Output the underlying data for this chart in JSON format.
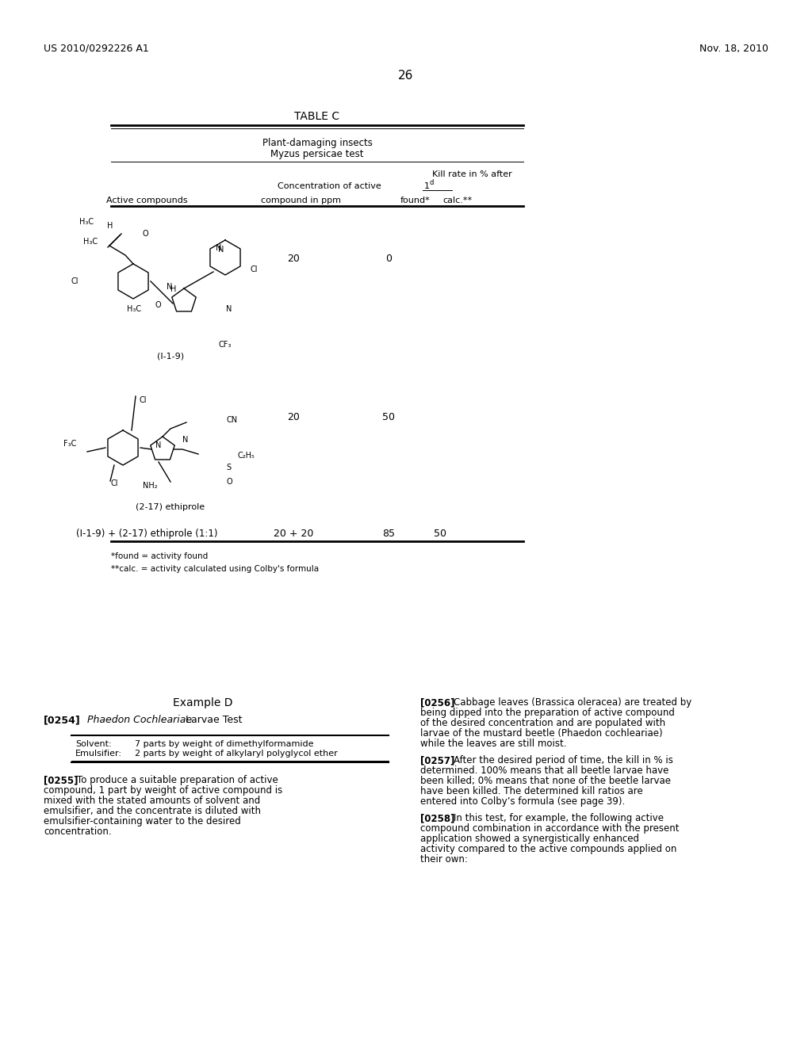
{
  "patent_number": "US 2010/0292226 A1",
  "patent_date": "Nov. 18, 2010",
  "page_number": "26",
  "table_title": "TABLE C",
  "table_header1": "Plant-damaging insects",
  "table_header2": "Myzus persicae test",
  "col_kill_rate": "Kill rate in % after",
  "col_conc": "Concentration of active",
  "col_day": "1",
  "col_day_sup": "d",
  "col_active": "Active compounds",
  "col_ppm": "compound in ppm",
  "col_found": "found*",
  "col_calc": "calc.**",
  "row1_compound": "(I-1-9)",
  "row1_ppm": "20",
  "row1_found": "0",
  "row1_calc": "",
  "row2_compound": "(2-17) ethiprole",
  "row2_ppm": "20",
  "row2_found": "50",
  "row2_calc": "",
  "row3_compound": "(I-1-9) + (2-17) ethiprole (1:1)",
  "row3_ppm": "20 + 20",
  "row3_found": "85",
  "row3_calc": "50",
  "footnote1": "*found = activity found",
  "footnote2": "**calc. = activity calculated using Colby's formula",
  "example_title": "Example D",
  "example_para_num": "[0254]",
  "example_para_title_italic": "Phaedon Cochleariae",
  "example_para_title_rest": " Larvae Test",
  "solvent_label": "Solvent:",
  "solvent_value": "7 parts by weight of dimethylformamide",
  "emulsifier_label": "Emulsifier:",
  "emulsifier_value": "2 parts by weight of alkylaryl polyglycol ether",
  "para0255": "[0255] To produce a suitable preparation of active compound, 1 part by weight of active compound is mixed with the stated amounts of solvent and emulsifier, and the concentrate is diluted with emulsifier-containing water to the desired concentration.",
  "para0256_num": "[0256]",
  "para0256": "Cabbage leaves (Brassica oleracea) are treated by being dipped into the preparation of active compound of the desired concentration and are populated with larvae of the mustard beetle (Phaedon cochleariae) while the leaves are still moist.",
  "para0257_num": "[0257]",
  "para0257": "After the desired period of time, the kill in % is determined. 100% means that all beetle larvae have been killed; 0% means that none of the beetle larvae have been killed. The determined kill ratios are entered into Colby’s formula (see page 39).",
  "para0258_num": "[0258]",
  "para0258": "In this test, for example, the following active compound combination in accordance with the present application showed a synergistically enhanced activity compared to the active compounds applied on their own:",
  "bg_color": "#ffffff",
  "text_color": "#000000",
  "line_color": "#000000"
}
